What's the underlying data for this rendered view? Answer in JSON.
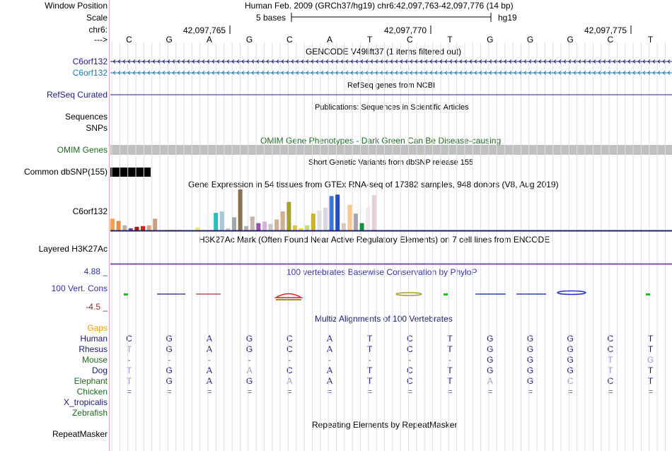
{
  "header": {
    "window_position_label": "Window Position",
    "window_position_value": "Human Feb. 2009 (GRCh37/hg19)   chr6:42,097,763-42,097,776 (14 bp)",
    "scale_label": "Scale",
    "scale_text": "5 bases",
    "scale_assembly": "hg19",
    "chrom_label": "chr6:",
    "arrow_label": "--->",
    "positions": [
      "42,097,765",
      "42,097,770",
      "42,097,775"
    ],
    "bases": [
      "C",
      "G",
      "A",
      "G",
      "C",
      "A",
      "T",
      "C",
      "T",
      "G",
      "G",
      "G",
      "C",
      "T"
    ]
  },
  "tracks": {
    "gencode": {
      "title": "GENCODE V49lift37 (1 items filtered out)",
      "items": [
        {
          "label": "C6orf132",
          "color": "#202080"
        },
        {
          "label": "C6orf132",
          "color": "#1c7ca8"
        }
      ]
    },
    "refseq": {
      "label": "RefSeq Curated",
      "title": "RefSeq genes from NCBI",
      "color": "#202080"
    },
    "publications": {
      "title": "Publications: Sequences in Scientific Articles",
      "label": "Sequences"
    },
    "snps": {
      "label": "SNPs"
    },
    "omim": {
      "label": "OMIM Genes",
      "title": "OMIM Gene Phenotypes - Dark Green Can Be Disease-causing",
      "color": "#1e6a1e"
    },
    "dbsnp": {
      "label": "Common dbSNP(155)",
      "title": "Short Genetic Variants from dbSNP release 155"
    },
    "gtex": {
      "label": "C6orf132",
      "title": "Gene Expression in 54 tissues from GTEx RNA-seq of 17382 samples, 948 donors (V8, Aug 2019)"
    },
    "h3k27ac": {
      "label": "Layered H3K27Ac",
      "title": "H3K27Ac Mark (Often Found Near Active Regulatory Elements) on 7 cell lines from ENCODE"
    },
    "conservation": {
      "label": "100 Vert. Cons",
      "title": "100 vertebrates Basewise Conservation by PhyloP",
      "max": "4.88 _",
      "min": "-4.5 _",
      "color": "#34349c",
      "max_color": "#34349c",
      "min_color": "#8b2a2a"
    },
    "multiz": {
      "title": "Multiz Alignments of 100 Vertebrates",
      "gaps_label": "Gaps",
      "species": [
        {
          "name": "Human",
          "color": "#1a1a6e",
          "bases": [
            "C",
            "G",
            "A",
            "G",
            "C",
            "A",
            "T",
            "C",
            "T",
            "G",
            "G",
            "G",
            "C",
            "T"
          ]
        },
        {
          "name": "Rhesus",
          "color": "#1a1a6e",
          "bases": [
            "T",
            "G",
            "A",
            "G",
            "C",
            "A",
            "T",
            "C",
            "T",
            "G",
            "G",
            "G",
            "C",
            "T"
          ]
        },
        {
          "name": "Mouse",
          "color": "#1e6a1e",
          "bases": [
            "-",
            "-",
            "-",
            "-",
            "-",
            "-",
            "-",
            "-",
            "-",
            "G",
            "G",
            "G",
            "T",
            "G"
          ]
        },
        {
          "name": "Dog",
          "color": "#1a1a6e",
          "bases": [
            "T",
            "G",
            "A",
            "A",
            "C",
            "A",
            "T",
            "C",
            "T",
            "G",
            "G",
            "G",
            "T",
            "T"
          ]
        },
        {
          "name": "Elephant",
          "color": "#1e6a1e",
          "bases": [
            "T",
            "G",
            "A",
            "G",
            "A",
            "A",
            "T",
            "C",
            "T",
            "A",
            "G",
            "C",
            "C",
            "T"
          ]
        },
        {
          "name": "Chicken",
          "color": "#1e6a1e",
          "bases": [
            "=",
            "=",
            "=",
            "=",
            "=",
            "=",
            "=",
            "=",
            "=",
            "=",
            "=",
            "=",
            "=",
            "="
          ]
        },
        {
          "name": "X_tropicalis",
          "color": "#1a1a6e",
          "bases": []
        },
        {
          "name": "Zebrafish",
          "color": "#1e6a1e",
          "bases": []
        }
      ]
    },
    "repeatmasker": {
      "label": "RepeatMasker",
      "title": "Repeating Elements by RepeatMasker"
    }
  },
  "gtex_chart": {
    "type": "bar",
    "values": [
      16,
      13,
      7,
      3,
      5,
      6,
      7,
      16,
      0,
      1,
      1,
      1,
      0,
      0,
      4,
      0,
      0,
      24,
      26,
      3,
      18,
      56,
      6,
      19,
      10,
      12,
      9,
      15,
      26,
      39,
      7,
      3,
      7,
      23,
      27,
      31,
      47,
      49,
      10,
      35,
      23,
      10,
      31,
      48
    ],
    "colors": [
      "#f4a04c",
      "#ee8c3c",
      "#b8b8a0",
      "#7d4a8a",
      "#c01010",
      "#e81818",
      "#dda480",
      "#c8a080",
      "#f0e868",
      "#f0e868",
      "#f0e868",
      "#f0e868",
      "#f0e868",
      "#f0e868",
      "#f0e868",
      "#f0e868",
      "#f0e868",
      "#22c0c0",
      "#a8c8d8",
      "#c8c8c8",
      "#a0a8b0",
      "#8a7050",
      "#b0b0b0",
      "#c8b4a8",
      "#a050b0",
      "#d8b0d8",
      "#c8c8c8",
      "#d0b090",
      "#d0b090",
      "#a6a030",
      "#e0c050",
      "#f0e000",
      "#c0d890",
      "#c8b030",
      "#e0e0e0",
      "#d8d8e0",
      "#3a7ad0",
      "#2050c0",
      "#d8c8c0",
      "#f8c890",
      "#a8a8a8",
      "#109040",
      "#f0e8e8",
      "#e8d0d0"
    ]
  },
  "conservation_data": [
    0.35,
    0,
    0,
    0,
    0,
    0,
    0,
    0,
    0,
    0,
    0,
    0,
    0,
    0
  ],
  "alignment_colors": {
    "match": "#1a1a6e",
    "mismatch": "#9a9ac0",
    "insert": "#606088"
  }
}
